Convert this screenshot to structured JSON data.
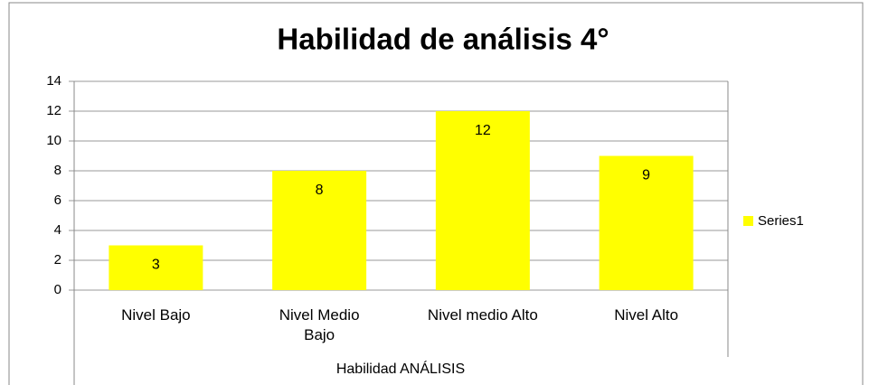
{
  "chart_data": {
    "type": "bar",
    "title": "Habilidad de análisis 4°",
    "categories": [
      "Nivel Bajo",
      "Nivel Medio Bajo",
      "Nivel medio Alto",
      "Nivel Alto"
    ],
    "values": [
      3,
      8,
      12,
      9
    ],
    "color": "#ffff00",
    "series_name": "Series1",
    "xlabel": "Habilidad ANÁLISIS",
    "ylim": [
      0,
      14
    ],
    "yticks": [
      0,
      2,
      4,
      6,
      8,
      10,
      12,
      14
    ],
    "grid": true,
    "legend": "right"
  }
}
